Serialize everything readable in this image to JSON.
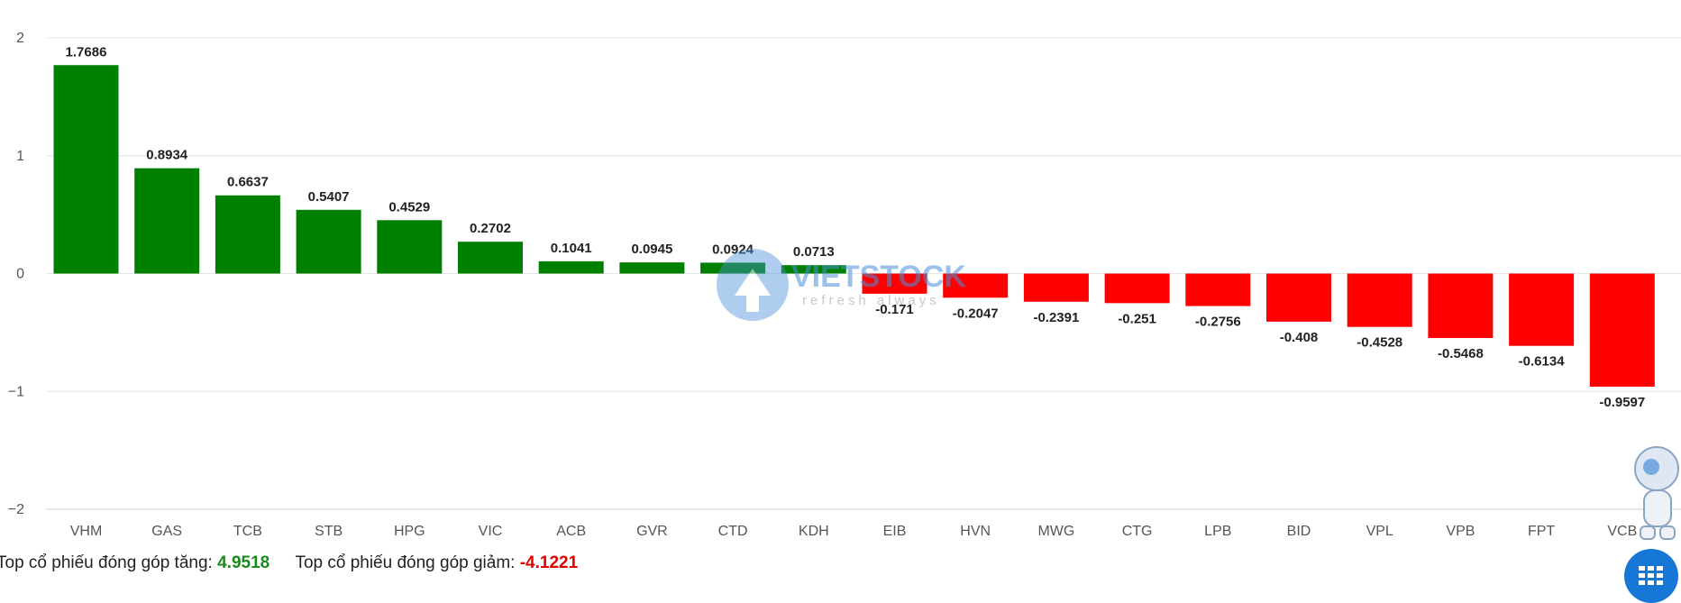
{
  "chart_data": {
    "type": "bar",
    "categories": [
      "VHM",
      "GAS",
      "TCB",
      "STB",
      "HPG",
      "VIC",
      "ACB",
      "GVR",
      "CTD",
      "KDH",
      "EIB",
      "HVN",
      "MWG",
      "CTG",
      "LPB",
      "BID",
      "VPL",
      "VPB",
      "FPT",
      "VCB"
    ],
    "values": [
      1.7686,
      0.8934,
      0.6637,
      0.5407,
      0.4529,
      0.2702,
      0.1041,
      0.0945,
      0.0924,
      0.0713,
      -0.171,
      -0.2047,
      -0.2391,
      -0.251,
      -0.2756,
      -0.408,
      -0.4528,
      -0.5468,
      -0.6134,
      -0.9597
    ],
    "value_labels": [
      "1.7686",
      "0.8934",
      "0.6637",
      "0.5407",
      "0.4529",
      "0.2702",
      "0.1041",
      "0.0945",
      "0.0924",
      "0.0713",
      "-0.171",
      "-0.2047",
      "-0.2391",
      "-0.251",
      "-0.2756",
      "-0.408",
      "-0.4528",
      "-0.5468",
      "-0.6134",
      "-0.9597"
    ],
    "ylim": [
      -2,
      2
    ],
    "yticks": [
      2,
      1,
      0,
      -1,
      -2
    ],
    "ytick_labels": [
      "2",
      "1",
      "0",
      "−1",
      "−2"
    ],
    "grid": true,
    "colors": {
      "positive": "#008000",
      "negative": "#ff0000"
    }
  },
  "summary": {
    "up_label": "Top cổ phiếu đóng góp tăng:",
    "up_value": "4.9518",
    "down_label": "Top cổ phiếu đóng góp giảm:",
    "down_value": "-4.1221"
  },
  "watermark": {
    "brand": "VIETSTOCK",
    "tagline": "refresh always"
  }
}
